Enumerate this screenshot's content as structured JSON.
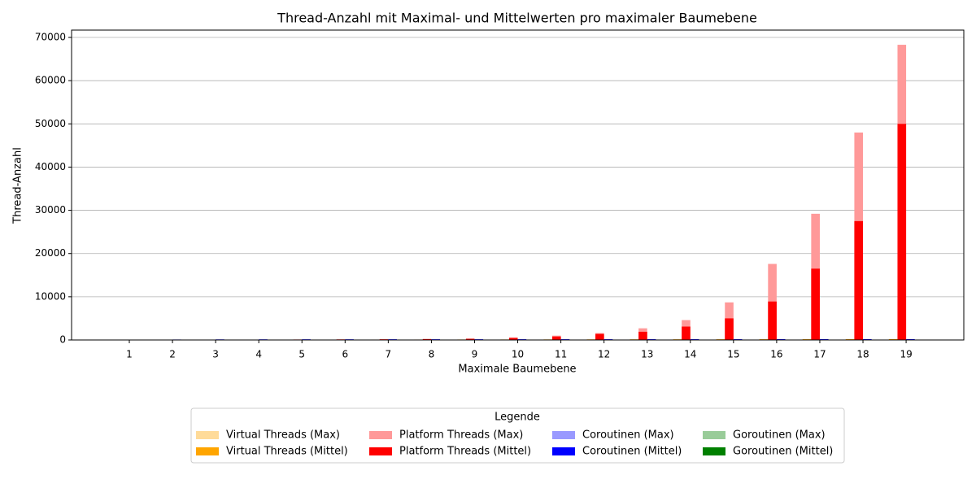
{
  "chart_data": {
    "type": "bar",
    "title": "Thread-Anzahl mit Maximal- und Mittelwerten pro maximaler Baumebene",
    "x_label": "Maximale Baumebene",
    "y_label": "Thread-Anzahl",
    "categories": [
      "1",
      "2",
      "3",
      "4",
      "5",
      "6",
      "7",
      "8",
      "9",
      "10",
      "11",
      "12",
      "13",
      "14",
      "15",
      "16",
      "17",
      "18",
      "19"
    ],
    "series": [
      {
        "name": "Virtual Threads (Max)",
        "color": "#ffdb99",
        "values": [
          20,
          40,
          60,
          70,
          80,
          90,
          100,
          110,
          120,
          130,
          140,
          150,
          160,
          170,
          180,
          190,
          200,
          210,
          220
        ]
      },
      {
        "name": "Virtual Threads (Mittel)",
        "color": "#ffa500",
        "values": [
          10,
          30,
          40,
          50,
          60,
          70,
          80,
          90,
          100,
          100,
          110,
          120,
          130,
          140,
          150,
          160,
          170,
          180,
          190
        ]
      },
      {
        "name": "Platform Threads (Max)",
        "color": "#ff9999",
        "values": [
          10,
          30,
          60,
          90,
          120,
          150,
          180,
          250,
          350,
          600,
          1000,
          1600,
          2700,
          4600,
          8700,
          17600,
          29200,
          48000,
          68300
        ]
      },
      {
        "name": "Platform Threads (Mittel)",
        "color": "#ff0000",
        "values": [
          5,
          15,
          40,
          70,
          100,
          120,
          150,
          200,
          250,
          450,
          800,
          1400,
          1900,
          3100,
          5000,
          8900,
          16500,
          27500,
          50000
        ]
      },
      {
        "name": "Coroutinen (Max)",
        "color": "#9999ff",
        "values": [
          50,
          120,
          150,
          160,
          170,
          170,
          180,
          180,
          190,
          190,
          200,
          200,
          200,
          210,
          210,
          210,
          220,
          220,
          220
        ]
      },
      {
        "name": "Coroutinen (Mittel)",
        "color": "#0000ff",
        "values": [
          30,
          100,
          120,
          130,
          140,
          140,
          150,
          150,
          150,
          160,
          160,
          160,
          170,
          170,
          170,
          180,
          180,
          180,
          180
        ]
      },
      {
        "name": "Goroutinen (Max)",
        "color": "#99cc99",
        "values": [
          10,
          15,
          20,
          20,
          25,
          25,
          30,
          30,
          30,
          35,
          35,
          35,
          40,
          40,
          40,
          45,
          45,
          45,
          50
        ]
      },
      {
        "name": "Goroutinen (Mittel)",
        "color": "#008000",
        "values": [
          5,
          10,
          15,
          15,
          20,
          20,
          20,
          25,
          25,
          25,
          30,
          30,
          30,
          30,
          35,
          35,
          35,
          40,
          40
        ]
      }
    ],
    "ylim": [
      0,
      71700
    ],
    "yticks": [
      0,
      10000,
      20000,
      30000,
      40000,
      50000,
      60000,
      70000
    ],
    "grid": true,
    "legend_title": "Legende",
    "legend_position": "bottom"
  }
}
